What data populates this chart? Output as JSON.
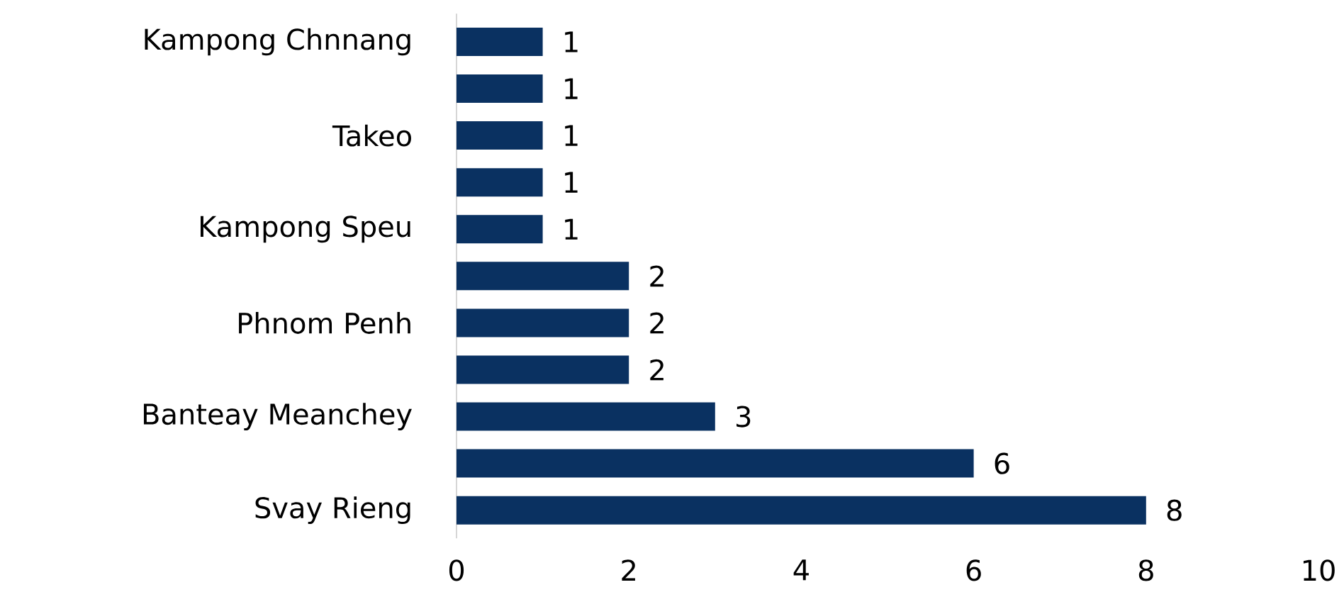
{
  "chart_data": {
    "type": "bar",
    "orientation": "horizontal",
    "categories": [
      "Kampong Chnnang",
      null,
      "Takeo",
      null,
      "Kampong Speu",
      null,
      "Phnom Penh",
      null,
      "Banteay Meanchey",
      null,
      "Svay Rieng"
    ],
    "values": [
      1,
      1,
      1,
      1,
      1,
      2,
      2,
      2,
      3,
      6,
      8
    ],
    "color": "#0a3161",
    "data_labels": true,
    "xlim": [
      0,
      10
    ],
    "xticks": [
      0,
      2,
      4,
      6,
      8,
      10
    ]
  }
}
